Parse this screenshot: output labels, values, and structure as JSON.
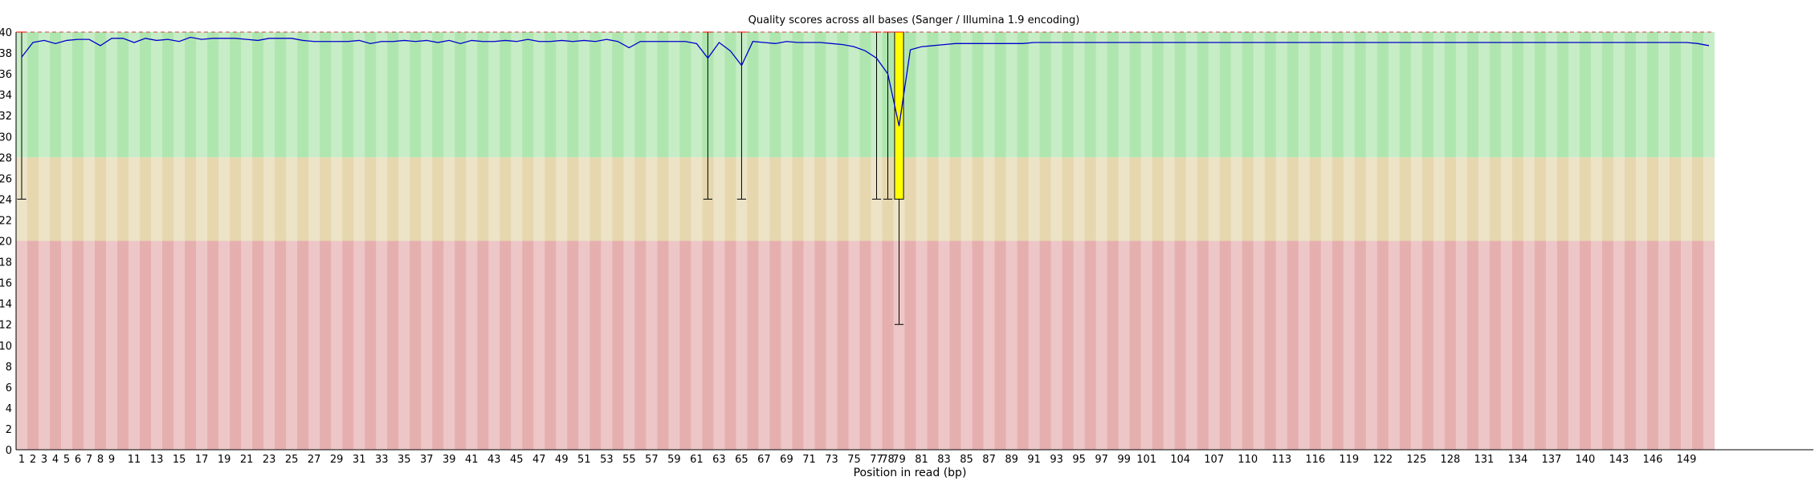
{
  "chart_data": {
    "type": "box",
    "title": "Quality scores across all bases (Sanger / Illumina 1.9 encoding)",
    "xlabel": "Position in read (bp)",
    "ylabel": "",
    "ylim": [
      0,
      40
    ],
    "y_ticks": [
      0,
      2,
      4,
      6,
      8,
      10,
      12,
      14,
      16,
      18,
      20,
      22,
      24,
      26,
      28,
      30,
      32,
      34,
      36,
      38,
      40
    ],
    "bands": [
      {
        "from": 28,
        "to": 40,
        "color": "#afe6af"
      },
      {
        "from": 20,
        "to": 28,
        "color": "#e6d7af"
      },
      {
        "from": 0,
        "to": 20,
        "color": "#e6afaf"
      }
    ],
    "x_tick_labels": [
      "1",
      "2",
      "3",
      "4",
      "5",
      "6",
      "7",
      "8",
      "9",
      "11",
      "13",
      "15",
      "17",
      "19",
      "21",
      "23",
      "25",
      "27",
      "29",
      "31",
      "33",
      "35",
      "37",
      "39",
      "41",
      "43",
      "45",
      "47",
      "49",
      "51",
      "53",
      "55",
      "57",
      "59",
      "61",
      "63",
      "65",
      "67",
      "69",
      "71",
      "73",
      "75",
      "77",
      "78",
      "79",
      "81",
      "83",
      "85",
      "87",
      "89",
      "91",
      "93",
      "95",
      "97",
      "99",
      "101",
      "104",
      "107",
      "110",
      "113",
      "116",
      "119",
      "122",
      "125",
      "128",
      "131",
      "134",
      "137",
      "140",
      "143",
      "146",
      "149"
    ],
    "x_tick_positions": [
      1,
      2,
      3,
      4,
      5,
      6,
      7,
      8,
      9,
      11,
      13,
      15,
      17,
      19,
      21,
      23,
      25,
      27,
      29,
      31,
      33,
      35,
      37,
      39,
      41,
      43,
      45,
      47,
      49,
      51,
      53,
      55,
      57,
      59,
      61,
      63,
      65,
      67,
      69,
      71,
      73,
      75,
      77,
      78,
      79,
      81,
      83,
      85,
      87,
      89,
      91,
      93,
      95,
      97,
      99,
      101,
      104,
      107,
      110,
      113,
      116,
      119,
      122,
      125,
      128,
      131,
      134,
      137,
      140,
      143,
      146,
      149
    ],
    "x_min": 1,
    "x_max": 151,
    "mean_line": {
      "color": "#0000cc",
      "points": [
        [
          1,
          37.6
        ],
        [
          2,
          39.0
        ],
        [
          3,
          39.2
        ],
        [
          4,
          38.9
        ],
        [
          5,
          39.2
        ],
        [
          6,
          39.3
        ],
        [
          7,
          39.3
        ],
        [
          8,
          38.7
        ],
        [
          9,
          39.4
        ],
        [
          10,
          39.4
        ],
        [
          11,
          39.0
        ],
        [
          12,
          39.4
        ],
        [
          13,
          39.2
        ],
        [
          14,
          39.3
        ],
        [
          15,
          39.1
        ],
        [
          16,
          39.5
        ],
        [
          17,
          39.3
        ],
        [
          18,
          39.4
        ],
        [
          19,
          39.4
        ],
        [
          20,
          39.4
        ],
        [
          21,
          39.3
        ],
        [
          22,
          39.2
        ],
        [
          23,
          39.4
        ],
        [
          24,
          39.4
        ],
        [
          25,
          39.4
        ],
        [
          26,
          39.2
        ],
        [
          27,
          39.1
        ],
        [
          28,
          39.1
        ],
        [
          29,
          39.1
        ],
        [
          30,
          39.1
        ],
        [
          31,
          39.2
        ],
        [
          32,
          38.9
        ],
        [
          33,
          39.1
        ],
        [
          34,
          39.1
        ],
        [
          35,
          39.2
        ],
        [
          36,
          39.1
        ],
        [
          37,
          39.2
        ],
        [
          38,
          39.0
        ],
        [
          39,
          39.2
        ],
        [
          40,
          38.9
        ],
        [
          41,
          39.2
        ],
        [
          42,
          39.1
        ],
        [
          43,
          39.1
        ],
        [
          44,
          39.2
        ],
        [
          45,
          39.1
        ],
        [
          46,
          39.3
        ],
        [
          47,
          39.1
        ],
        [
          48,
          39.1
        ],
        [
          49,
          39.2
        ],
        [
          50,
          39.1
        ],
        [
          51,
          39.2
        ],
        [
          52,
          39.1
        ],
        [
          53,
          39.3
        ],
        [
          54,
          39.1
        ],
        [
          55,
          38.5
        ],
        [
          56,
          39.1
        ],
        [
          57,
          39.1
        ],
        [
          58,
          39.1
        ],
        [
          59,
          39.1
        ],
        [
          60,
          39.1
        ],
        [
          61,
          38.9
        ],
        [
          62,
          37.5
        ],
        [
          63,
          39.0
        ],
        [
          64,
          38.2
        ],
        [
          65,
          36.8
        ],
        [
          66,
          39.1
        ],
        [
          67,
          39.0
        ],
        [
          68,
          38.9
        ],
        [
          69,
          39.1
        ],
        [
          70,
          39.0
        ],
        [
          71,
          39.0
        ],
        [
          72,
          39.0
        ],
        [
          73,
          38.9
        ],
        [
          74,
          38.8
        ],
        [
          75,
          38.6
        ],
        [
          76,
          38.2
        ],
        [
          77,
          37.5
        ],
        [
          78,
          36.0
        ],
        [
          79,
          31.0
        ],
        [
          80,
          38.3
        ],
        [
          81,
          38.6
        ],
        [
          82,
          38.7
        ],
        [
          83,
          38.8
        ],
        [
          84,
          38.9
        ],
        [
          85,
          38.9
        ],
        [
          86,
          38.9
        ],
        [
          87,
          38.9
        ],
        [
          88,
          38.9
        ],
        [
          89,
          38.9
        ],
        [
          90,
          38.9
        ],
        [
          91,
          39.0
        ],
        [
          92,
          39.0
        ],
        [
          93,
          39.0
        ],
        [
          94,
          39.0
        ],
        [
          95,
          39.0
        ],
        [
          96,
          39.0
        ],
        [
          97,
          39.0
        ],
        [
          98,
          39.0
        ],
        [
          99,
          39.0
        ],
        [
          100,
          39.0
        ],
        [
          101,
          39.0
        ],
        [
          102,
          39.0
        ],
        [
          103,
          39.0
        ],
        [
          104,
          39.0
        ],
        [
          105,
          39.0
        ],
        [
          106,
          39.0
        ],
        [
          107,
          39.0
        ],
        [
          108,
          39.0
        ],
        [
          109,
          39.0
        ],
        [
          110,
          39.0
        ],
        [
          111,
          39.0
        ],
        [
          112,
          39.0
        ],
        [
          113,
          39.0
        ],
        [
          114,
          39.0
        ],
        [
          115,
          39.0
        ],
        [
          116,
          39.0
        ],
        [
          117,
          39.0
        ],
        [
          118,
          39.0
        ],
        [
          119,
          39.0
        ],
        [
          120,
          39.0
        ],
        [
          121,
          39.0
        ],
        [
          122,
          39.0
        ],
        [
          123,
          39.0
        ],
        [
          124,
          39.0
        ],
        [
          125,
          39.0
        ],
        [
          126,
          39.0
        ],
        [
          127,
          39.0
        ],
        [
          128,
          39.0
        ],
        [
          129,
          39.0
        ],
        [
          130,
          39.0
        ],
        [
          131,
          39.0
        ],
        [
          132,
          39.0
        ],
        [
          133,
          39.0
        ],
        [
          134,
          39.0
        ],
        [
          135,
          39.0
        ],
        [
          136,
          39.0
        ],
        [
          137,
          39.0
        ],
        [
          138,
          39.0
        ],
        [
          139,
          39.0
        ],
        [
          140,
          39.0
        ],
        [
          141,
          39.0
        ],
        [
          142,
          39.0
        ],
        [
          143,
          39.0
        ],
        [
          144,
          39.0
        ],
        [
          145,
          39.0
        ],
        [
          146,
          39.0
        ],
        [
          147,
          39.0
        ],
        [
          148,
          39.0
        ],
        [
          149,
          39.0
        ],
        [
          150,
          38.9
        ],
        [
          151,
          38.7
        ]
      ]
    },
    "box_color": "#ffff00",
    "median_color": "#ff0000",
    "whisker_color": "#000000",
    "boxes": [
      {
        "x": 1,
        "lower_whisker": 24,
        "q1": 40,
        "median": 40,
        "q3": 40,
        "upper_whisker": 40
      },
      {
        "x": 62,
        "lower_whisker": 24,
        "q1": 40,
        "median": 40,
        "q3": 40,
        "upper_whisker": 40
      },
      {
        "x": 65,
        "lower_whisker": 24,
        "q1": 40,
        "median": 40,
        "q3": 40,
        "upper_whisker": 40
      },
      {
        "x": 77,
        "lower_whisker": 24,
        "q1": 40,
        "median": 40,
        "q3": 40,
        "upper_whisker": 40
      },
      {
        "x": 78,
        "lower_whisker": 24,
        "q1": 40,
        "median": 40,
        "q3": 40,
        "upper_whisker": 40
      },
      {
        "x": 79,
        "lower_whisker": 12,
        "q1": 24,
        "median": 40,
        "q3": 40,
        "upper_whisker": 40
      }
    ]
  }
}
